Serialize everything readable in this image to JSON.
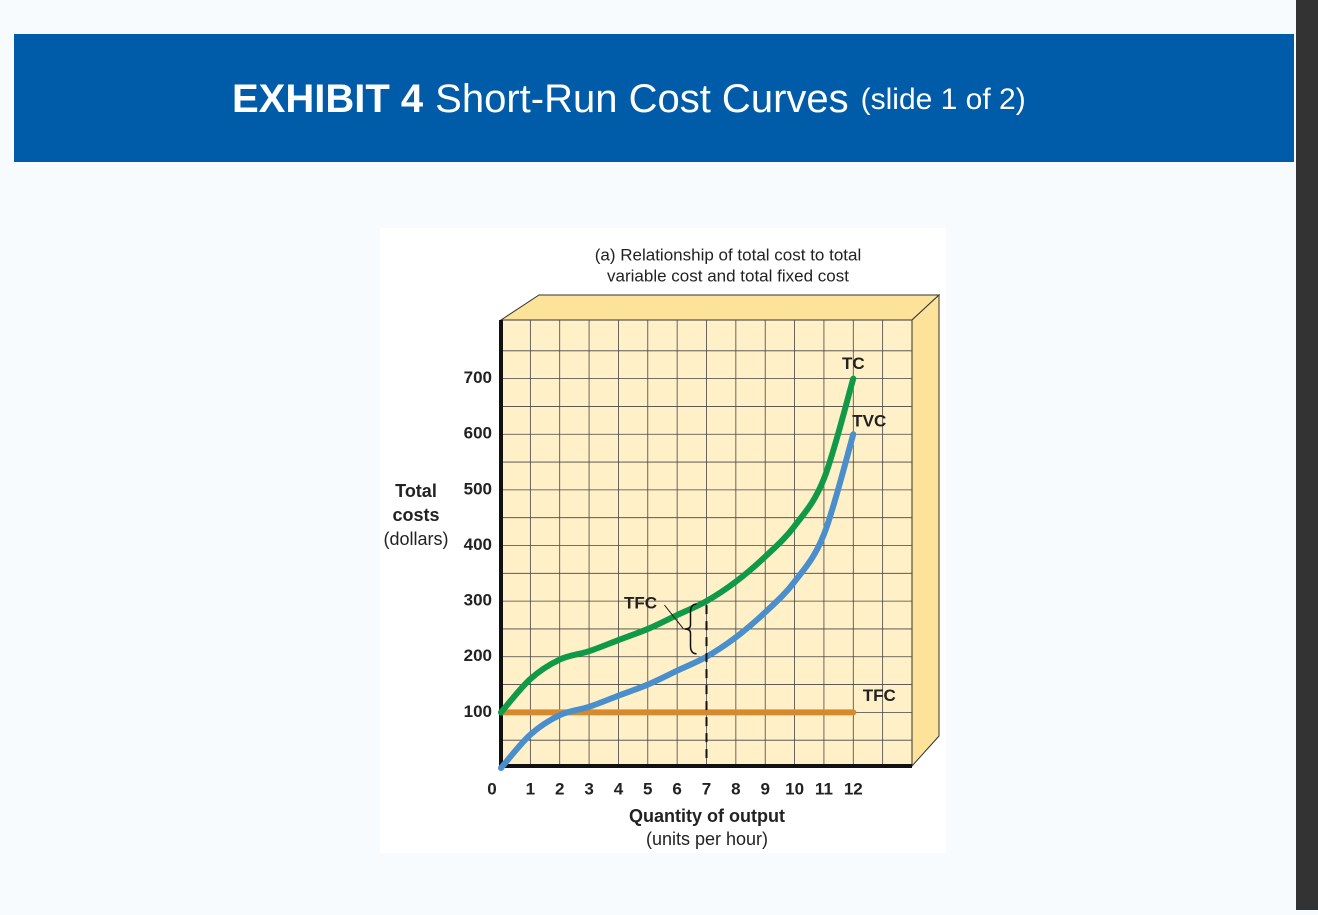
{
  "header": {
    "exhibit": "EXHIBIT 4",
    "title": "Short-Run Cost Curves",
    "slide": "(slide 1 of 2)"
  },
  "chart_data": {
    "type": "line",
    "subtitle": [
      "(a) Relationship of total cost to total",
      "variable cost and total fixed cost"
    ],
    "y_label": [
      "Total",
      "costs",
      "(dollars)"
    ],
    "x_label": [
      "Quantity of output",
      "(units per hour)"
    ],
    "x": [
      0,
      1,
      2,
      3,
      4,
      5,
      6,
      7,
      8,
      9,
      10,
      11,
      12
    ],
    "series": [
      {
        "name": "TC",
        "color": "#109a48",
        "values": [
          100,
          160,
          195,
          210,
          230,
          250,
          275,
          300,
          335,
          380,
          435,
          520,
          700
        ]
      },
      {
        "name": "TVC",
        "color": "#4a8fcc",
        "values": [
          0,
          60,
          95,
          110,
          130,
          150,
          175,
          200,
          235,
          280,
          335,
          420,
          600
        ]
      },
      {
        "name": "TFC",
        "color": "#d68a2e",
        "values": [
          100,
          100,
          100,
          100,
          100,
          100,
          100,
          100,
          100,
          100,
          100,
          100,
          100
        ]
      }
    ],
    "annotation": {
      "text": "TFC",
      "x": 7
    },
    "xlim": [
      0,
      14
    ],
    "ylim": [
      0,
      800
    ],
    "xticks": [
      0,
      1,
      2,
      3,
      4,
      5,
      6,
      7,
      8,
      9,
      10,
      11,
      12
    ],
    "yticks": [
      100,
      200,
      300,
      400,
      500,
      600,
      700
    ],
    "grid": true
  }
}
